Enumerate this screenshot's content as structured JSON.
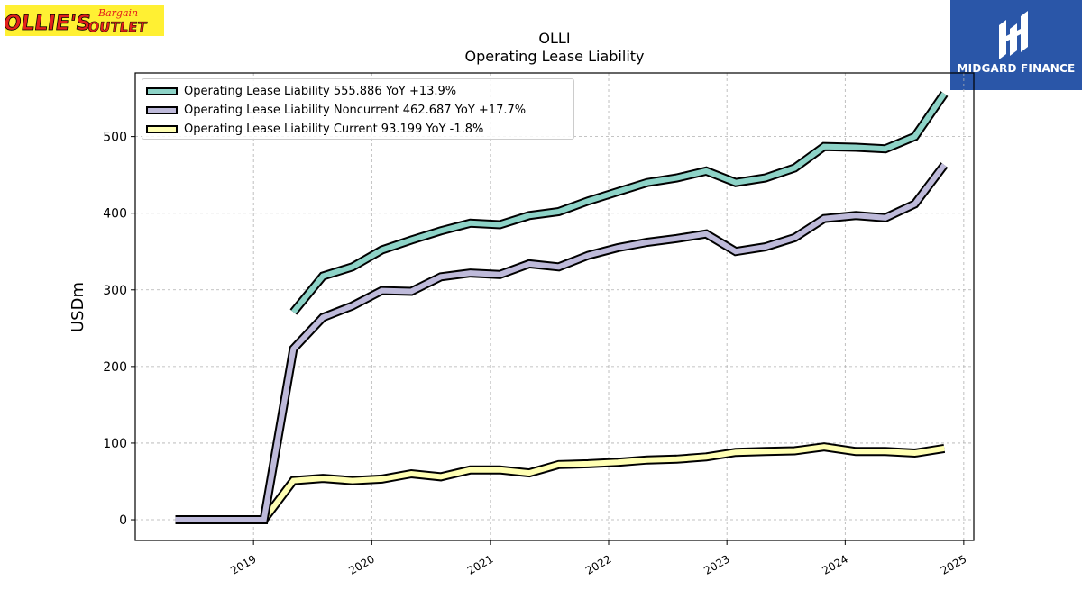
{
  "brand_logo": {
    "name": "Ollie's Bargain Outlet",
    "word1": "OLLIE'S",
    "word2": "Bargain",
    "word3": "OUTLET",
    "bg": "#fff033",
    "fg": "#e3201b"
  },
  "finance_logo": {
    "label": "MIDGARD FINANCE",
    "bg": "#2a56a8"
  },
  "chart_data": {
    "type": "line",
    "title": "OLLI",
    "subtitle": "Operating Lease Liability",
    "xlabel": "",
    "ylabel": "USDm",
    "x_ticks": [
      "2019",
      "2020",
      "2021",
      "2022",
      "2023",
      "2024",
      "2025"
    ],
    "y_ticks": [
      0,
      100,
      200,
      300,
      400,
      500
    ],
    "xlim": [
      "2018-01-01",
      "2025-02-01"
    ],
    "ylim": [
      -27,
      583
    ],
    "grid": true,
    "legend_position": "upper-left",
    "series": [
      {
        "name": "Operating Lease Liability",
        "legend_label": "Operating Lease Liability  555.886 YoY +13.9%",
        "color": "#8dd3c7",
        "points": [
          [
            "2019-05-04",
            271
          ],
          [
            "2019-08-03",
            318
          ],
          [
            "2019-11-02",
            330
          ],
          [
            "2020-02-01",
            352
          ],
          [
            "2020-05-02",
            365
          ],
          [
            "2020-08-01",
            377
          ],
          [
            "2020-10-31",
            387
          ],
          [
            "2021-01-30",
            385
          ],
          [
            "2021-05-01",
            397
          ],
          [
            "2021-07-31",
            402
          ],
          [
            "2021-10-30",
            416
          ],
          [
            "2022-01-29",
            428
          ],
          [
            "2022-04-30",
            440
          ],
          [
            "2022-07-30",
            446
          ],
          [
            "2022-10-29",
            455
          ],
          [
            "2023-01-28",
            440
          ],
          [
            "2023-04-29",
            446
          ],
          [
            "2023-07-29",
            459
          ],
          [
            "2023-10-28",
            487
          ],
          [
            "2024-02-03",
            486
          ],
          [
            "2024-05-04",
            484
          ],
          [
            "2024-08-03",
            500
          ],
          [
            "2024-11-02",
            556
          ]
        ]
      },
      {
        "name": "Operating Lease Liability Noncurrent",
        "legend_label": "Operating Lease Liability Noncurrent  462.687 YoY +17.7%",
        "color": "#bebada",
        "points": [
          [
            "2018-05-05",
            0
          ],
          [
            "2018-08-04",
            0
          ],
          [
            "2018-11-03",
            0
          ],
          [
            "2019-02-02",
            0
          ],
          [
            "2019-05-04",
            223
          ],
          [
            "2019-08-03",
            264
          ],
          [
            "2019-11-02",
            279
          ],
          [
            "2020-02-01",
            299
          ],
          [
            "2020-05-02",
            298
          ],
          [
            "2020-08-01",
            317
          ],
          [
            "2020-10-31",
            322
          ],
          [
            "2021-01-30",
            320
          ],
          [
            "2021-05-01",
            334
          ],
          [
            "2021-07-31",
            330
          ],
          [
            "2021-10-30",
            345
          ],
          [
            "2022-01-29",
            355
          ],
          [
            "2022-04-30",
            362
          ],
          [
            "2022-07-30",
            367
          ],
          [
            "2022-10-29",
            373
          ],
          [
            "2023-01-28",
            350
          ],
          [
            "2023-04-29",
            356
          ],
          [
            "2023-07-29",
            368
          ],
          [
            "2023-10-28",
            393
          ],
          [
            "2024-02-03",
            397
          ],
          [
            "2024-05-04",
            394
          ],
          [
            "2024-08-03",
            412
          ],
          [
            "2024-11-02",
            463
          ]
        ]
      },
      {
        "name": "Operating Lease Liability Current",
        "legend_label": "Operating Lease Liability Current  93.199 YoY -1.8%",
        "color": "#ffffb3",
        "points": [
          [
            "2018-05-05",
            0
          ],
          [
            "2018-08-04",
            0
          ],
          [
            "2018-11-03",
            0
          ],
          [
            "2019-02-02",
            0
          ],
          [
            "2019-05-04",
            51
          ],
          [
            "2019-08-03",
            54
          ],
          [
            "2019-11-02",
            51
          ],
          [
            "2020-02-01",
            53
          ],
          [
            "2020-05-02",
            60
          ],
          [
            "2020-08-01",
            56
          ],
          [
            "2020-10-31",
            65
          ],
          [
            "2021-01-30",
            65
          ],
          [
            "2021-05-01",
            61
          ],
          [
            "2021-07-31",
            72
          ],
          [
            "2021-10-30",
            73
          ],
          [
            "2022-01-29",
            75
          ],
          [
            "2022-04-30",
            78
          ],
          [
            "2022-07-30",
            79
          ],
          [
            "2022-10-29",
            82
          ],
          [
            "2023-01-28",
            88
          ],
          [
            "2023-04-29",
            89
          ],
          [
            "2023-07-29",
            90
          ],
          [
            "2023-10-28",
            95
          ],
          [
            "2024-02-03",
            89
          ],
          [
            "2024-05-04",
            89
          ],
          [
            "2024-08-03",
            87
          ],
          [
            "2024-11-02",
            93
          ]
        ]
      }
    ]
  }
}
